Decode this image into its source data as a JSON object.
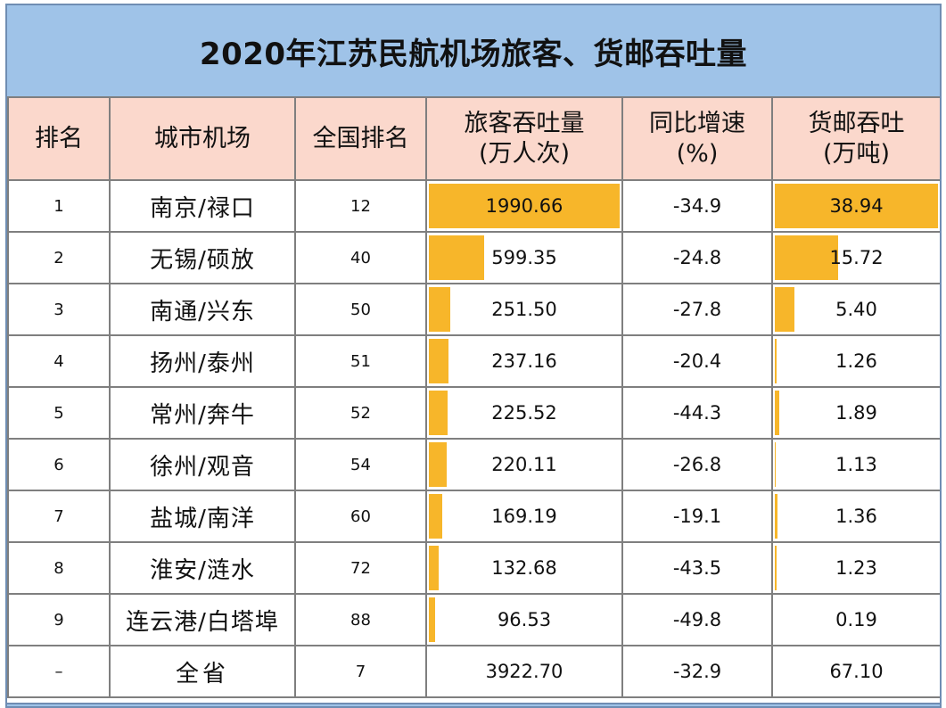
{
  "title": "2020年江苏民航机场旅客、货邮吞吐量",
  "headers": {
    "rank": "排名",
    "airport": "城市机场",
    "national_rank": "全国排名",
    "passenger_line1": "旅客吞吐量",
    "passenger_line2": "(万人次)",
    "growth_line1": "同比增速",
    "growth_line2": "(%)",
    "cargo_line1": "货邮吞吐",
    "cargo_line2": "(万吨)"
  },
  "rows": [
    {
      "rank": "1",
      "airport": "南京/禄口",
      "national_rank": "12",
      "passenger": "1990.66",
      "growth": "-34.9",
      "cargo": "38.94"
    },
    {
      "rank": "2",
      "airport": "无锡/硕放",
      "national_rank": "40",
      "passenger": "599.35",
      "growth": "-24.8",
      "cargo": "15.72"
    },
    {
      "rank": "3",
      "airport": "南通/兴东",
      "national_rank": "50",
      "passenger": "251.50",
      "growth": "-27.8",
      "cargo": "5.40"
    },
    {
      "rank": "4",
      "airport": "扬州/泰州",
      "national_rank": "51",
      "passenger": "237.16",
      "growth": "-20.4",
      "cargo": "1.26"
    },
    {
      "rank": "5",
      "airport": "常州/奔牛",
      "national_rank": "52",
      "passenger": "225.52",
      "growth": "-44.3",
      "cargo": "1.89"
    },
    {
      "rank": "6",
      "airport": "徐州/观音",
      "national_rank": "54",
      "passenger": "220.11",
      "growth": "-26.8",
      "cargo": "1.13"
    },
    {
      "rank": "7",
      "airport": "盐城/南洋",
      "national_rank": "60",
      "passenger": "169.19",
      "growth": "-19.1",
      "cargo": "1.36"
    },
    {
      "rank": "8",
      "airport": "淮安/涟水",
      "national_rank": "72",
      "passenger": "132.68",
      "growth": "-43.5",
      "cargo": "1.23"
    },
    {
      "rank": "9",
      "airport": "连云港/白塔埠",
      "national_rank": "88",
      "passenger": "96.53",
      "growth": "-49.8",
      "cargo": "0.19"
    }
  ],
  "total": {
    "rank": "–",
    "airport": "全省",
    "national_rank": "7",
    "passenger": "3922.70",
    "growth": "-32.9",
    "cargo": "67.10"
  },
  "colors": {
    "header_bg": "#9fc3e8",
    "column_header_bg": "#fbd8cc",
    "bar": "#f7b62a",
    "border": "#7f7f7f"
  }
}
